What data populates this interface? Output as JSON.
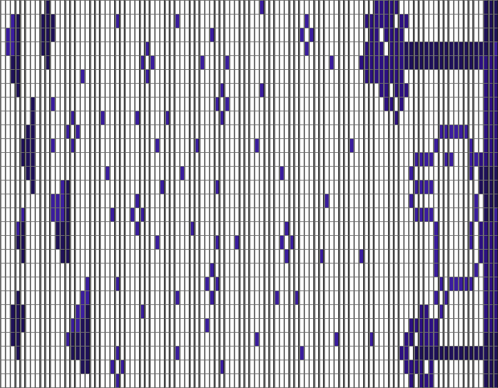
{
  "grid": {
    "columns": 100,
    "rows": 28,
    "colors": {
      "empty": "#ffffff",
      "d": "#1e1058",
      "m": "#2c1080",
      "l": "#3a1c9e"
    },
    "filled": [
      [
        "9d",
        "52l",
        "75-79m",
        "97-99d"
      ],
      [
        "2l",
        "3d",
        "8-10d",
        "23l",
        "35l",
        "61l",
        "73-78m",
        "80-81m",
        "97-99d"
      ],
      [
        "1-2l",
        "3d",
        "8-10d",
        "42l",
        "60l",
        "62l",
        "74-75m",
        "77-80m",
        "97-99d"
      ],
      [
        "1-2l",
        "3d",
        "8-9d",
        "29l",
        "61l",
        "73-76m",
        "78-80m",
        "81-98d",
        "99l"
      ],
      [
        "2-3d",
        "9d",
        "28l",
        "30l",
        "40l",
        "45l",
        "66l",
        "72-80m",
        "81-95d",
        "96-99m"
      ],
      [
        "2-3d",
        "16l",
        "29l",
        "73-80m",
        "97-99m"
      ],
      [
        "3d",
        "44l",
        "52l",
        "76-77m",
        "79-81m",
        "97-99m"
      ],
      [
        "6d",
        "10l",
        "43l",
        "45l",
        "77-78m",
        "80m",
        "97-99m"
      ],
      [
        "6d",
        "14l",
        "20l",
        "27l",
        "33l",
        "44l",
        "79m",
        "97-99m"
      ],
      [
        "5-6d",
        "13l",
        "15l",
        "88-93l",
        "97-99m"
      ],
      [
        "4-6d",
        "10l",
        "14l",
        "31l",
        "39l",
        "51l",
        "70l",
        "87l",
        "94l",
        "97-99m"
      ],
      [
        "4-6d",
        "83-86l",
        "89-90l",
        "94-95l",
        "96-99m"
      ],
      [
        "5-6d",
        "21l",
        "36l",
        "56l",
        "82l",
        "94l",
        "96-99d"
      ],
      [
        "6d",
        "12l",
        "13d",
        "32l",
        "43l",
        "83-86l",
        "96-99d"
      ],
      [
        "10-12l",
        "13d",
        "27l",
        "65l",
        "82l",
        "95l",
        "97-99d"
      ],
      [
        "4l",
        "10-12l",
        "13d",
        "22l",
        "26l",
        "28l",
        "83-86l",
        "95l",
        "97-98d",
        "99l"
      ],
      [
        "3l",
        "4d",
        "11-13d",
        "27l",
        "38l",
        "57l",
        "87l",
        "94l",
        "96-99m"
      ],
      [
        "3-4d",
        "11-13d",
        "31l",
        "43l",
        "47l",
        "56l",
        "58l",
        "87l",
        "94l",
        "96-99m"
      ],
      [
        "4d",
        "12-13d",
        "57l",
        "64l",
        "72l",
        "87l",
        "96-99m"
      ],
      [
        "42l",
        "87l",
        "95l",
        "97-99m"
      ],
      [
        "17l",
        "23l",
        "41l",
        "43l",
        "88l",
        "90-94l",
        "97-99m"
      ],
      [
        "3d",
        "16-17l",
        "35l",
        "42l",
        "55l",
        "59l",
        "87l",
        "89l",
        "97-99m"
      ],
      [
        "2-4d",
        "15-16l",
        "17d",
        "28l",
        "84-85m",
        "88l",
        "97-99m"
      ],
      [
        "2-4d",
        "14-15l",
        "16-17d",
        "41l",
        "82-87m",
        "97-99m"
      ],
      [
        "2-3d",
        "13l",
        "14-17d",
        "51l",
        "67l",
        "74l",
        "81-82m",
        "84-87m",
        "97-99d"
      ],
      [
        "3d",
        "14-17d",
        "23l",
        "35l",
        "60l",
        "80-81m",
        "83-99d"
      ],
      [
        "16-17d",
        "22l",
        "24l",
        "44l",
        "81-84m",
        "86m",
        "97-99d"
      ],
      [
        "23l",
        "82m",
        "84-86m",
        "97-99d"
      ]
    ]
  }
}
